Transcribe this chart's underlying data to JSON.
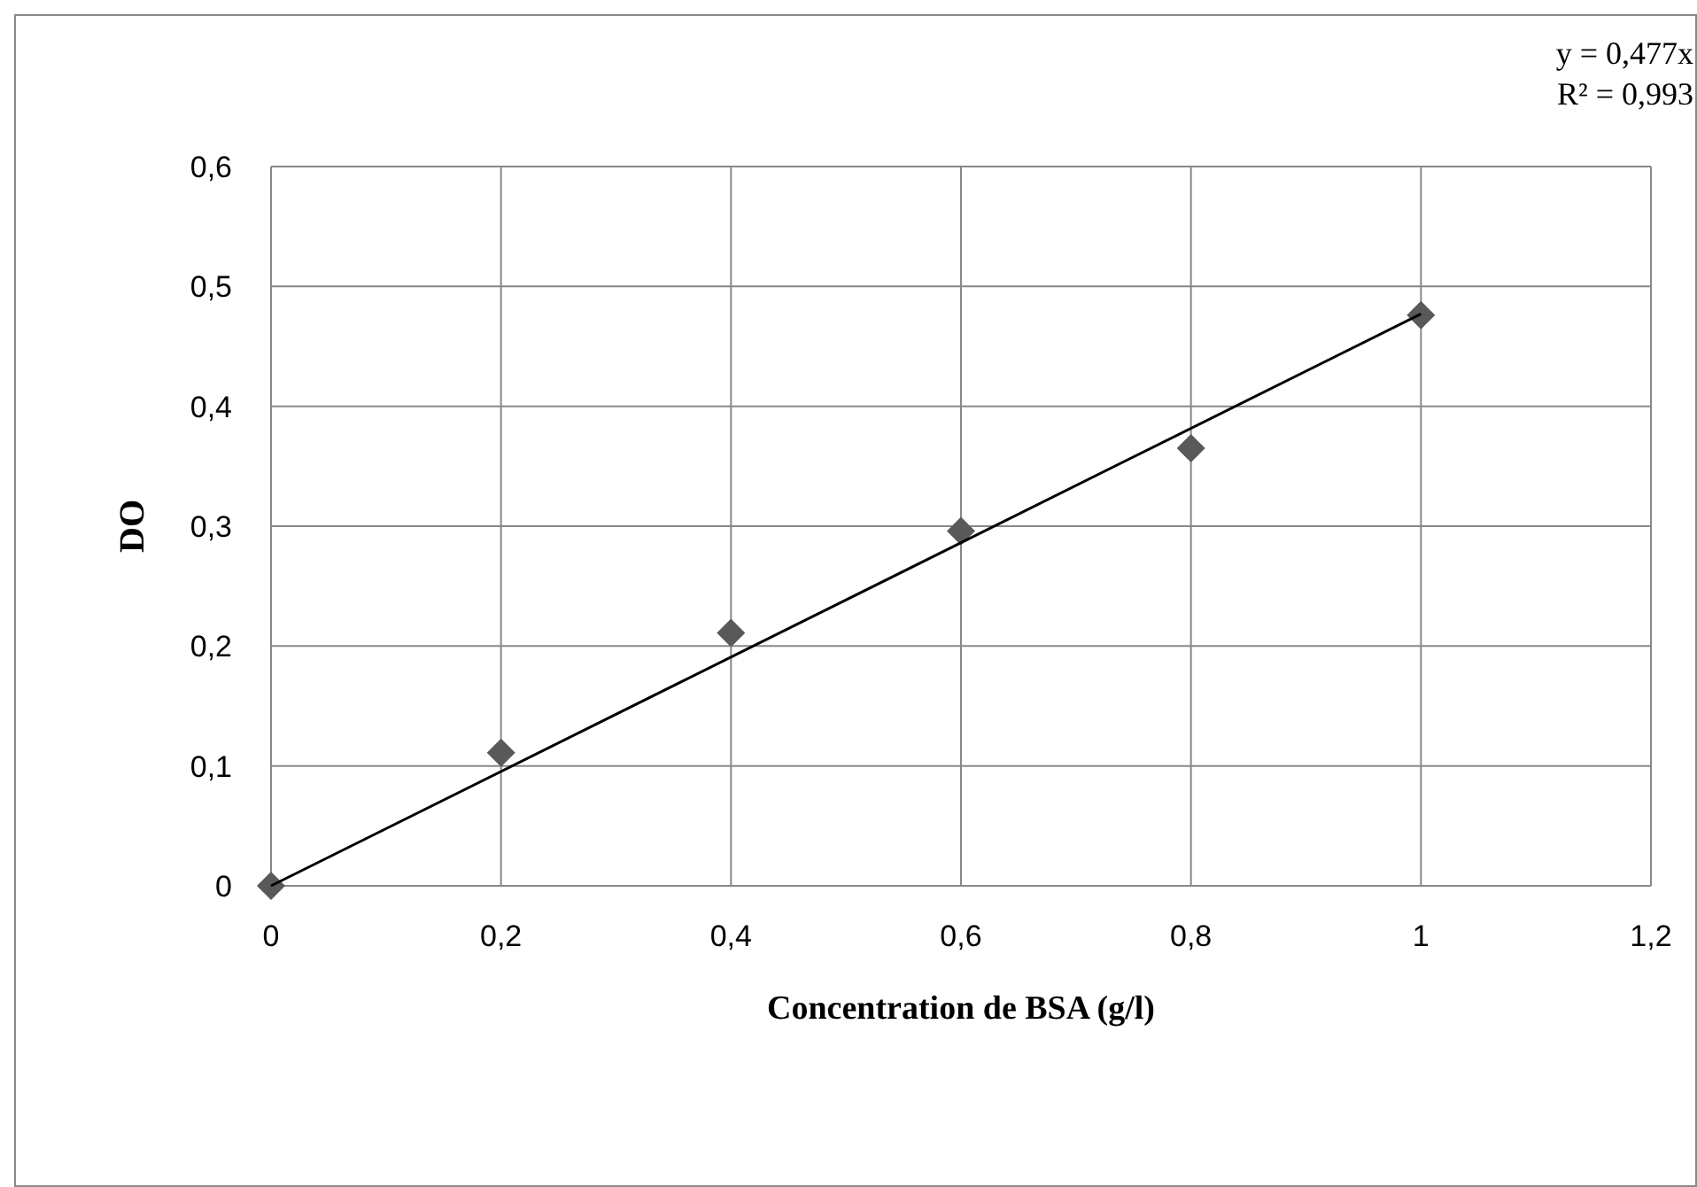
{
  "chart_data": {
    "type": "scatter",
    "xlabel": "Concentration de BSA (g/l)",
    "ylabel": "DO",
    "x": [
      0,
      0.2,
      0.4,
      0.6,
      0.8,
      1
    ],
    "series": [
      {
        "color": "#595959",
        "marker": "diamond",
        "values": [
          0,
          0.111,
          0.211,
          0.296,
          0.365,
          0.476
        ]
      },
      {
        "type": "line",
        "color": "#000000",
        "x": [
          0,
          1
        ],
        "values": [
          0,
          0.477
        ],
        "marker": "none",
        "line_style": "solid"
      }
    ],
    "xlim": [
      0,
      1.2
    ],
    "xticks": [
      0,
      {
        "value": 0.2,
        "label": "0,2"
      },
      {
        "value": 0.4,
        "label": "0,4"
      },
      {
        "value": 0.6,
        "label": "0,6"
      },
      {
        "value": 0.8,
        "label": "0,8"
      },
      1,
      {
        "value": 1.2,
        "label": "1,2"
      }
    ],
    "ylim": [
      0,
      0.6
    ],
    "yticks": [
      0,
      {
        "value": 0.1,
        "label": "0,1"
      },
      {
        "value": 0.2,
        "label": "0,2"
      },
      {
        "value": 0.3,
        "label": "0,3"
      },
      {
        "value": 0.4,
        "label": "0,4"
      },
      {
        "value": 0.5,
        "label": "0,5"
      },
      {
        "value": 0.6,
        "label": "0,6"
      }
    ],
    "grid": true,
    "annotations": [
      "y = 0,477x",
      "R² = 0,993"
    ]
  }
}
